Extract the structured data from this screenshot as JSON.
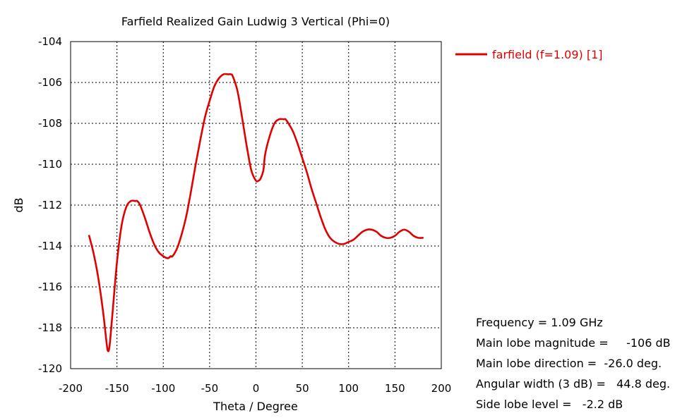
{
  "chart_data": {
    "type": "line",
    "title": "Farfield Realized Gain Ludwig 3 Vertical (Phi=0)",
    "xlabel": "Theta / Degree",
    "ylabel": "dB",
    "xlim": [
      -200,
      200
    ],
    "ylim": [
      -120,
      -104
    ],
    "xticks": [
      "-200",
      "-150",
      "-100",
      "-50",
      "0",
      "50",
      "100",
      "150",
      "200"
    ],
    "yticks": [
      "-104",
      "-106",
      "-108",
      "-110",
      "-112",
      "-114",
      "-116",
      "-118",
      "-120"
    ],
    "grid": true,
    "legend_position": "top-right, outside plot",
    "series": [
      {
        "name": "farfield (f=1.09) [1]",
        "color": "#e00000",
        "x": [
          -180,
          -175,
          -170,
          -165,
          -162,
          -160,
          -158,
          -155,
          -150,
          -145,
          -140,
          -135,
          -130,
          -128,
          -125,
          -120,
          -115,
          -110,
          -105,
          -100,
          -95,
          -92,
          -90,
          -85,
          -80,
          -75,
          -70,
          -65,
          -60,
          -55,
          -50,
          -45,
          -40,
          -35,
          -30,
          -27,
          -25,
          -20,
          -15,
          -10,
          -5,
          0,
          3,
          5,
          8,
          10,
          15,
          20,
          25,
          30,
          32,
          35,
          40,
          45,
          50,
          55,
          60,
          65,
          70,
          75,
          80,
          85,
          90,
          95,
          100,
          105,
          110,
          115,
          120,
          125,
          130,
          135,
          140,
          145,
          150,
          155,
          160,
          165,
          170,
          175,
          180
        ],
        "y": [
          -113.5,
          -114.4,
          -115.6,
          -117.2,
          -118.4,
          -119.1,
          -118.9,
          -117.4,
          -114.8,
          -113.0,
          -112.1,
          -111.8,
          -111.8,
          -111.8,
          -112.0,
          -112.6,
          -113.3,
          -113.9,
          -114.3,
          -114.5,
          -114.6,
          -114.5,
          -114.5,
          -114.1,
          -113.4,
          -112.5,
          -111.3,
          -110.0,
          -108.8,
          -107.7,
          -106.9,
          -106.2,
          -105.8,
          -105.6,
          -105.6,
          -105.6,
          -105.7,
          -106.4,
          -107.7,
          -109.1,
          -110.3,
          -110.8,
          -110.8,
          -110.7,
          -110.3,
          -109.5,
          -108.6,
          -108.0,
          -107.8,
          -107.8,
          -107.8,
          -108.0,
          -108.4,
          -109.0,
          -109.7,
          -110.4,
          -111.2,
          -111.9,
          -112.6,
          -113.2,
          -113.6,
          -113.8,
          -113.9,
          -113.9,
          -113.8,
          -113.7,
          -113.5,
          -113.3,
          -113.2,
          -113.2,
          -113.3,
          -113.5,
          -113.6,
          -113.6,
          -113.5,
          -113.3,
          -113.2,
          -113.3,
          -113.5,
          -113.6,
          -113.6
        ]
      }
    ]
  },
  "info": {
    "frequency": "Frequency = 1.09 GHz",
    "main_lobe_magnitude": "Main lobe magnitude =     -106 dB",
    "main_lobe_direction": "Main lobe direction =  -26.0 deg.",
    "angular_width": "Angular width (3 dB) =   44.8 deg.",
    "side_lobe_level": "Side lobe level =   -2.2 dB"
  }
}
